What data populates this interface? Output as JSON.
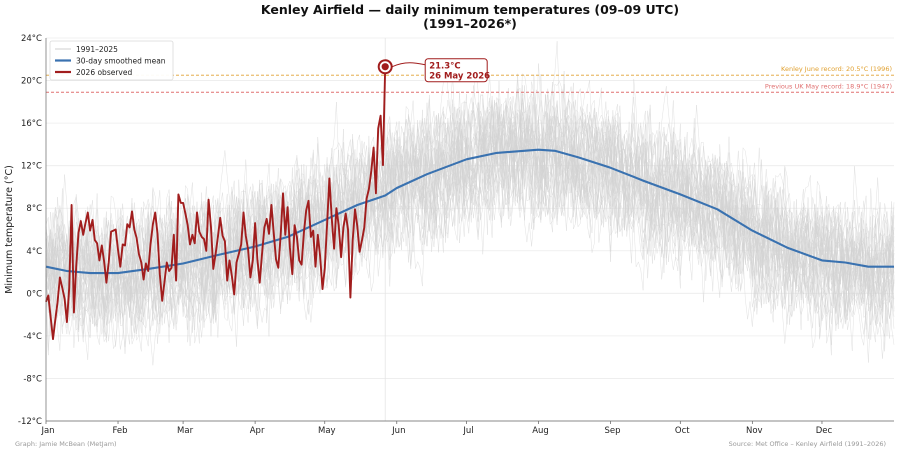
{
  "chart_data": {
    "type": "line",
    "title_line1": "Kenley Airfield — daily minimum temperatures (09–09 UTC)",
    "title_line2": "(1991–2026*)",
    "ylabel": "Minimum temperature (°C)",
    "xlabel": "",
    "ylim": [
      -12,
      24
    ],
    "yticks": [
      -12,
      -8,
      -4,
      0,
      4,
      8,
      12,
      16,
      20,
      24
    ],
    "ytick_labels": [
      "-12°C",
      "-8°C",
      "-4°C",
      "0°C",
      "4°C",
      "8°C",
      "12°C",
      "16°C",
      "20°C",
      "24°C"
    ],
    "xlim_day_of_year": [
      1,
      366
    ],
    "month_labels": [
      "Jan",
      "Feb",
      "Mar",
      "Apr",
      "May",
      "Jun",
      "Jul",
      "Aug",
      "Sep",
      "Oct",
      "Nov",
      "Dec"
    ],
    "month_start_days": [
      1,
      32,
      60,
      91,
      121,
      152,
      182,
      213,
      244,
      274,
      305,
      335
    ],
    "grid": true,
    "legend_position": "top-left",
    "legend": [
      "1991–2025",
      "30-day smoothed mean",
      "2026 observed"
    ],
    "colors": {
      "history": "#cfcfcf",
      "mean": "#3a72b0",
      "observed": "#a11d1d",
      "june_record": "#e0a030",
      "may_record": "#e07070"
    },
    "series": [
      {
        "name": "30-day smoothed mean",
        "x_day_of_year": [
          1,
          10,
          20,
          32,
          45,
          60,
          75,
          91,
          105,
          121,
          135,
          147,
          152,
          165,
          182,
          195,
          213,
          220,
          230,
          244,
          258,
          274,
          290,
          305,
          320,
          335,
          345,
          355,
          366
        ],
        "y": [
          2.5,
          2.1,
          1.9,
          1.9,
          2.3,
          2.8,
          3.6,
          4.4,
          5.3,
          6.9,
          8.3,
          9.2,
          9.9,
          11.2,
          12.6,
          13.2,
          13.5,
          13.4,
          12.8,
          11.8,
          10.6,
          9.3,
          7.9,
          5.9,
          4.3,
          3.1,
          2.9,
          2.5,
          2.5
        ]
      },
      {
        "name": "2026 observed",
        "x_day_of_year": [
          1,
          2,
          3,
          4,
          5,
          6,
          7,
          8,
          9,
          10,
          11,
          12,
          13,
          14,
          15,
          16,
          17,
          18,
          19,
          20,
          21,
          22,
          23,
          24,
          25,
          26,
          27,
          28,
          29,
          30,
          31,
          32,
          33,
          34,
          35,
          36,
          37,
          38,
          39,
          40,
          41,
          42,
          43,
          44,
          45,
          46,
          47,
          48,
          49,
          50,
          51,
          52,
          53,
          54,
          55,
          56,
          57,
          58,
          59,
          60,
          61,
          62,
          63,
          64,
          65,
          66,
          67,
          68,
          69,
          70,
          71,
          72,
          73,
          74,
          75,
          76,
          77,
          78,
          79,
          80,
          81,
          82,
          83,
          84,
          85,
          86,
          87,
          88,
          89,
          90,
          91,
          92,
          93,
          94,
          95,
          96,
          97,
          98,
          99,
          100,
          101,
          102,
          103,
          104,
          105,
          106,
          107,
          108,
          109,
          110,
          111,
          112,
          113,
          114,
          115,
          116,
          117,
          118,
          119,
          120,
          121,
          122,
          123,
          124,
          125,
          126,
          127,
          128,
          129,
          130,
          131,
          132,
          133,
          134,
          135,
          136,
          137,
          138,
          139,
          140,
          141,
          142,
          143,
          144,
          145,
          146
        ],
        "y": [
          -0.8,
          -0.2,
          -2.2,
          -4.3,
          -2.5,
          -0.8,
          1.5,
          0.5,
          -0.5,
          -2.7,
          0.5,
          8.3,
          -1.8,
          2.5,
          5.7,
          6.8,
          5.5,
          6.6,
          7.6,
          5.9,
          6.9,
          5.0,
          4.7,
          3.1,
          4.5,
          3.0,
          1.0,
          2.9,
          5.8,
          5.9,
          6.0,
          4.1,
          2.5,
          4.6,
          4.5,
          6.5,
          6.2,
          7.7,
          6.0,
          5.2,
          3.7,
          2.9,
          1.3,
          2.8,
          2.1,
          4.6,
          6.5,
          7.6,
          5.6,
          1.8,
          -0.7,
          1.1,
          2.9,
          2.1,
          2.4,
          5.5,
          1.2,
          9.3,
          8.5,
          8.5,
          7.5,
          6.4,
          4.6,
          5.5,
          4.7,
          7.6,
          5.8,
          5.3,
          5.1,
          4.0,
          8.8,
          6.2,
          2.3,
          3.7,
          5.3,
          7.1,
          5.4,
          4.9,
          1.2,
          3.1,
          1.6,
          -0.1,
          2.9,
          3.7,
          4.6,
          7.6,
          5.4,
          4.1,
          1.5,
          3.1,
          6.6,
          3.2,
          1.0,
          3.8,
          6.2,
          7.0,
          5.6,
          8.3,
          5.7,
          3.2,
          2.4,
          5.5,
          9.4,
          5.5,
          8.1,
          4.3,
          1.8,
          6.4,
          5.3,
          3.1,
          2.7,
          5.7,
          7.8,
          8.7,
          5.3,
          5.9,
          2.5,
          5.5,
          3.5,
          0.4,
          2.4,
          6.5,
          10.8,
          7.0,
          4.2,
          8.0,
          6.4,
          3.4,
          6.2,
          7.5,
          6.0,
          -0.4,
          5.0,
          7.9,
          6.3,
          3.9,
          5.0,
          6.2,
          8.9,
          9.8,
          11.5,
          13.7,
          9.4,
          15.5,
          16.7,
          12.0
        ]
      },
      {
        "name": "2026 observed (surge)",
        "x_day_of_year": [
          146,
          147
        ],
        "y": [
          12.0,
          21.3
        ]
      }
    ],
    "reference_lines": [
      {
        "label": "Kenley June record: 20.5°C (1996)",
        "value": 20.5
      },
      {
        "label": "Previous UK May record: 18.9°C (1947)",
        "value": 18.9
      }
    ],
    "annotation": {
      "line1": "21.3°C",
      "line2": "26 May 2026",
      "x_day_of_year": 147,
      "value": 21.3
    },
    "credits": {
      "left": "Graph: Jamie McBean (MetJam)",
      "right": "Source: Met Office – Kenley Airfield (1991–2026)"
    }
  }
}
